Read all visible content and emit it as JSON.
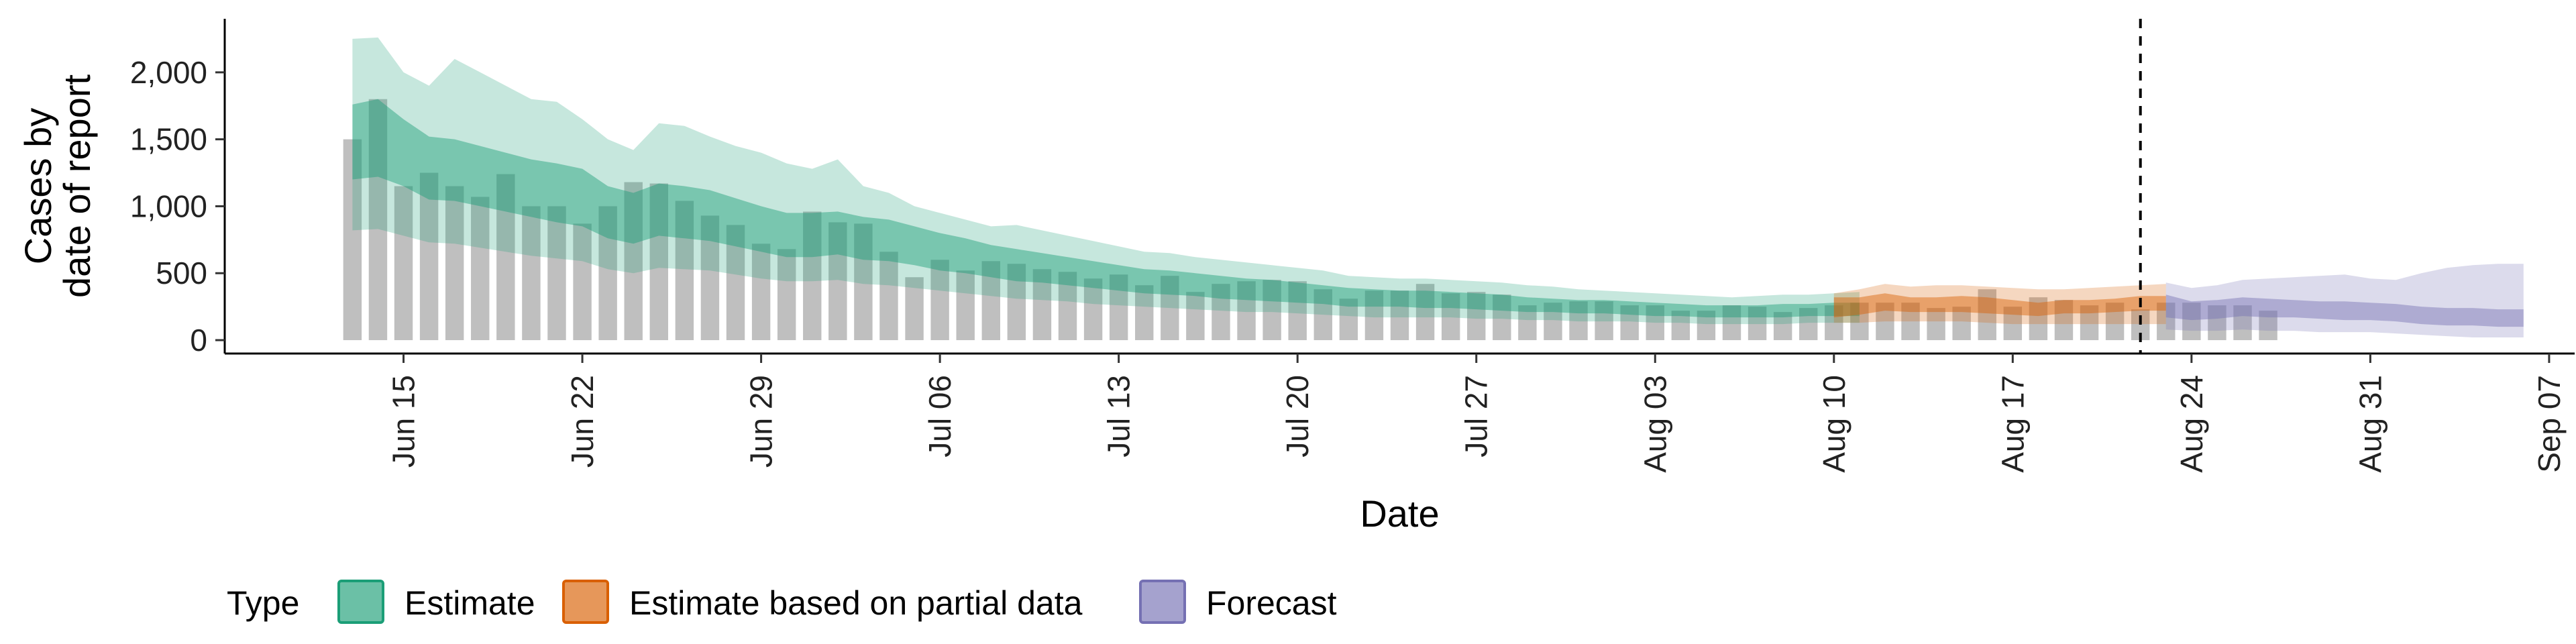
{
  "chart_data": {
    "type": "area",
    "xlabel": "Date",
    "ylabel_lines": [
      "Cases by",
      "date of report"
    ],
    "y_ticks": [
      0,
      500,
      1000,
      1500,
      2000
    ],
    "y_tick_labels": [
      "0",
      "500",
      "1,000",
      "1,500",
      "2,000"
    ],
    "ylim": [
      -100,
      2400
    ],
    "x_ticks": [
      "2020-06-15",
      "2020-06-22",
      "2020-06-29",
      "2020-07-06",
      "2020-07-13",
      "2020-07-20",
      "2020-07-27",
      "2020-08-03",
      "2020-08-10",
      "2020-08-17",
      "2020-08-24",
      "2020-08-31",
      "2020-09-07"
    ],
    "x_tick_labels": [
      "Jun 15",
      "Jun 22",
      "Jun 29",
      "Jul 06",
      "Jul 13",
      "Jul 20",
      "Jul 27",
      "Aug 03",
      "Aug 10",
      "Aug 17",
      "Aug 24",
      "Aug 31",
      "Sep 07"
    ],
    "xlim": [
      "2020-06-08",
      "2020-09-08"
    ],
    "forecast_boundary": "2020-08-22",
    "grid": false,
    "legend_position": "bottom",
    "legend_title": "Type",
    "colors": {
      "Estimate": "#1b9e77",
      "Estimate based on partial data": "#d95f02",
      "Forecast": "#7570b3",
      "observed": "#aaaaaa"
    },
    "observed_cases": {
      "start": "2020-06-13",
      "values": [
        1500,
        1800,
        1150,
        1250,
        1150,
        1070,
        1240,
        1000,
        1000,
        870,
        1000,
        1180,
        1170,
        1040,
        930,
        860,
        720,
        680,
        960,
        880,
        870,
        660,
        470,
        600,
        520,
        590,
        570,
        530,
        510,
        460,
        490,
        410,
        480,
        360,
        420,
        440,
        450,
        440,
        380,
        310,
        370,
        370,
        420,
        350,
        360,
        340,
        260,
        280,
        290,
        290,
        260,
        260,
        220,
        220,
        260,
        250,
        210,
        240,
        260,
        280,
        280,
        280,
        240,
        250,
        380,
        250,
        320,
        300,
        260,
        280,
        230,
        280,
        280,
        260,
        260,
        220
      ]
    },
    "series": [
      {
        "name": "Estimate",
        "start": "2020-06-13",
        "median": [
          1550,
          1560,
          1450,
          1320,
          1300,
          1250,
          1200,
          1140,
          1100,
          1070,
          950,
          900,
          970,
          950,
          930,
          880,
          830,
          780,
          780,
          800,
          760,
          740,
          700,
          660,
          630,
          590,
          560,
          540,
          520,
          490,
          460,
          440,
          430,
          410,
          390,
          380,
          370,
          350,
          340,
          320,
          310,
          310,
          300,
          300,
          290,
          280,
          260,
          260,
          250,
          250,
          240,
          230,
          220,
          220,
          210,
          220,
          220,
          230,
          230,
          230
        ],
        "lower50": [
          1200,
          1220,
          1150,
          1050,
          1040,
          1000,
          960,
          920,
          880,
          850,
          760,
          720,
          780,
          760,
          740,
          700,
          660,
          620,
          620,
          640,
          600,
          590,
          560,
          520,
          500,
          470,
          440,
          430,
          410,
          390,
          370,
          350,
          340,
          330,
          310,
          300,
          290,
          280,
          270,
          250,
          250,
          250,
          240,
          240,
          230,
          220,
          210,
          210,
          200,
          200,
          190,
          180,
          180,
          170,
          170,
          170,
          170,
          180,
          180,
          180
        ],
        "upper50": [
          1760,
          1800,
          1650,
          1520,
          1500,
          1450,
          1400,
          1350,
          1320,
          1280,
          1150,
          1100,
          1170,
          1150,
          1120,
          1060,
          1000,
          950,
          950,
          960,
          920,
          900,
          850,
          800,
          760,
          710,
          680,
          650,
          620,
          590,
          560,
          530,
          520,
          500,
          480,
          460,
          450,
          430,
          410,
          390,
          380,
          370,
          370,
          360,
          350,
          340,
          320,
          310,
          300,
          300,
          290,
          280,
          270,
          260,
          260,
          260,
          270,
          270,
          280,
          280
        ],
        "lower90": [
          820,
          830,
          780,
          730,
          720,
          690,
          660,
          630,
          610,
          590,
          530,
          500,
          540,
          530,
          520,
          490,
          460,
          440,
          440,
          450,
          420,
          410,
          390,
          370,
          350,
          330,
          310,
          300,
          290,
          270,
          260,
          250,
          240,
          230,
          220,
          210,
          210,
          200,
          190,
          180,
          170,
          170,
          170,
          170,
          160,
          160,
          150,
          150,
          140,
          140,
          140,
          130,
          130,
          120,
          120,
          120,
          120,
          130,
          130,
          130
        ],
        "upper90": [
          2250,
          2260,
          2000,
          1900,
          2100,
          2000,
          1900,
          1800,
          1780,
          1650,
          1500,
          1420,
          1620,
          1600,
          1520,
          1450,
          1400,
          1320,
          1280,
          1350,
          1150,
          1100,
          1000,
          950,
          900,
          850,
          860,
          820,
          780,
          740,
          700,
          660,
          650,
          620,
          600,
          580,
          560,
          540,
          520,
          480,
          470,
          460,
          460,
          450,
          440,
          430,
          410,
          400,
          380,
          370,
          360,
          350,
          340,
          330,
          320,
          330,
          340,
          340,
          350,
          360
        ]
      },
      {
        "name": "Estimate based on partial data",
        "start": "2020-08-10",
        "median": [
          240,
          250,
          280,
          260,
          260,
          270,
          260,
          240,
          230,
          250,
          250,
          260,
          270,
          270
        ],
        "lower50": [
          170,
          190,
          220,
          210,
          210,
          210,
          200,
          190,
          180,
          200,
          200,
          210,
          220,
          220
        ],
        "upper50": [
          320,
          320,
          350,
          320,
          320,
          330,
          320,
          300,
          280,
          300,
          300,
          310,
          330,
          330
        ],
        "lower90": [
          130,
          130,
          140,
          140,
          140,
          140,
          130,
          120,
          120,
          120,
          120,
          120,
          120,
          120
        ],
        "upper90": [
          350,
          380,
          420,
          400,
          410,
          410,
          400,
          390,
          380,
          380,
          390,
          400,
          410,
          420
        ]
      },
      {
        "name": "Forecast",
        "start": "2020-08-23",
        "median": [
          250,
          220,
          230,
          250,
          240,
          230,
          220,
          220,
          210,
          200,
          180,
          170,
          170,
          160,
          160
        ],
        "lower50": [
          170,
          150,
          160,
          180,
          170,
          170,
          160,
          150,
          150,
          140,
          120,
          110,
          110,
          100,
          100
        ],
        "upper50": [
          340,
          290,
          300,
          320,
          310,
          300,
          290,
          290,
          280,
          270,
          250,
          240,
          240,
          230,
          230
        ],
        "lower90": [
          80,
          70,
          70,
          80,
          70,
          70,
          60,
          60,
          60,
          50,
          40,
          30,
          20,
          20,
          20
        ],
        "upper90": [
          430,
          390,
          410,
          450,
          460,
          470,
          480,
          490,
          460,
          450,
          500,
          540,
          560,
          570,
          570
        ]
      }
    ]
  }
}
